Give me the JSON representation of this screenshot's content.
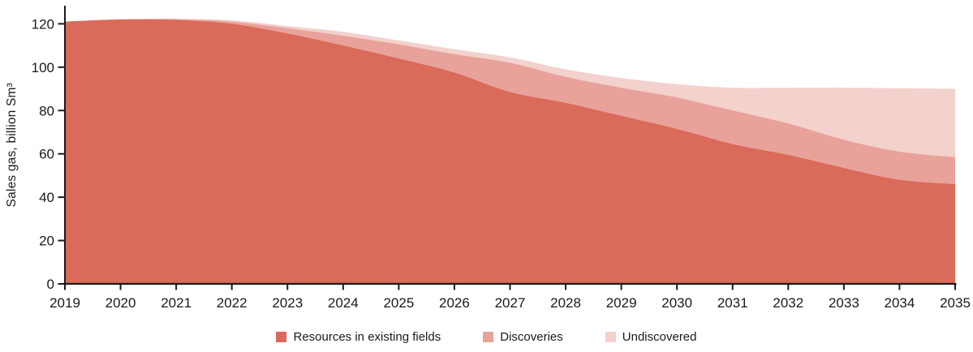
{
  "chart_data": {
    "type": "area",
    "stacked": true,
    "ylabel": "Sales gas, billion Sm³",
    "xlabel": "",
    "x": [
      2019,
      2020,
      2021,
      2022,
      2023,
      2024,
      2025,
      2026,
      2027,
      2028,
      2029,
      2030,
      2031,
      2032,
      2033,
      2034,
      2035
    ],
    "series": [
      {
        "name": "Resources in existing fields",
        "color": "#da6a5a",
        "values": [
          121,
          122,
          121.7,
          120,
          115.5,
          110,
          104,
          97.5,
          88.5,
          83.5,
          77.5,
          71.5,
          64.5,
          59.5,
          53.5,
          48,
          46
        ]
      },
      {
        "name": "Discoveries",
        "color": "#e8a29a",
        "values": [
          0,
          0,
          0.5,
          1,
          2.5,
          4.5,
          6.5,
          8.5,
          13.5,
          12,
          13,
          14.5,
          15.5,
          14.5,
          13,
          13,
          12.5
        ]
      },
      {
        "name": "Undiscovered",
        "color": "#f3d1cd",
        "values": [
          0,
          0,
          0.1,
          0.6,
          1,
          1.8,
          1.8,
          2.3,
          2.5,
          3.5,
          4.5,
          6.2,
          10.5,
          16.5,
          24,
          29.3,
          31.5
        ]
      }
    ],
    "yticks": [
      0,
      20,
      40,
      60,
      80,
      100,
      120
    ],
    "ylim": [
      0,
      128
    ],
    "grid": false,
    "legend_position": "bottom",
    "axis_color": "#1a1a1a",
    "text_color": "#1a1a1a",
    "background": "#ffffff"
  }
}
